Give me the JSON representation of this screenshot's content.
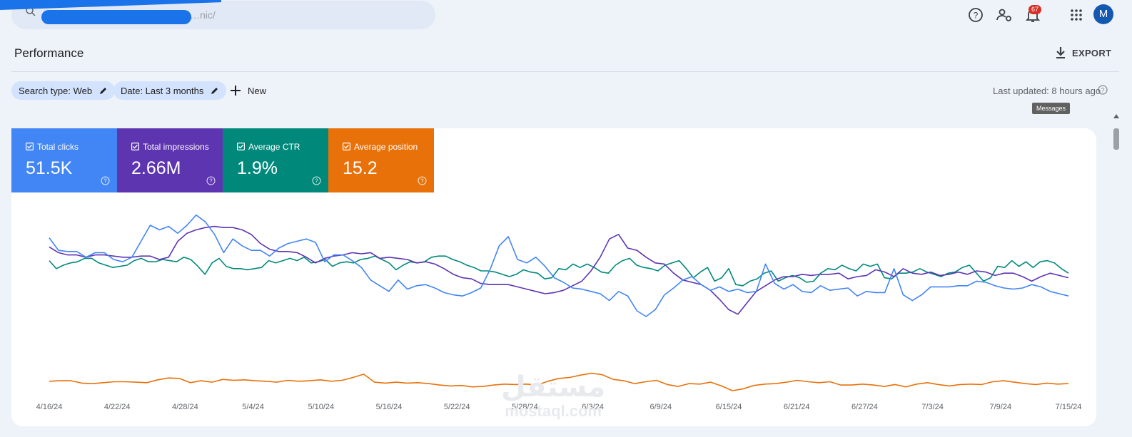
{
  "search": {
    "text": "…nic/"
  },
  "notifications": {
    "count": "67"
  },
  "avatar": {
    "initial": "M"
  },
  "icons": [
    "search-icon",
    "help-icon",
    "admin-icon",
    "bell-icon",
    "apps-grid-icon",
    "download-icon",
    "edit-icon",
    "add-icon",
    "checkbox-icon"
  ],
  "page": {
    "title": "Performance",
    "export_label": "EXPORT"
  },
  "filters": {
    "search_type": "Search type: Web",
    "date": "Date: Last 3 months",
    "new_label": "New"
  },
  "last_updated": "Last updated: 8 hours ago",
  "tooltip": "Messages",
  "metrics": [
    {
      "label": "Total clicks",
      "value": "51.5K",
      "color": "#4285f4",
      "checked": true
    },
    {
      "label": "Total impressions",
      "value": "2.66M",
      "color": "#5e35b1",
      "checked": true
    },
    {
      "label": "Average CTR",
      "value": "1.9%",
      "color": "#00897b",
      "checked": true
    },
    {
      "label": "Average position",
      "value": "15.2",
      "color": "#e8710a",
      "checked": true
    }
  ],
  "watermark": {
    "ar": "مستقل",
    "en": "mostaql.com"
  },
  "chart_data": {
    "type": "line",
    "x_ticks": [
      "4/16/24",
      "4/22/24",
      "4/28/24",
      "5/4/24",
      "5/10/24",
      "5/16/24",
      "5/22/24",
      "5/28/24",
      "6/3/24",
      "6/9/24",
      "6/15/24",
      "6/21/24",
      "6/27/24",
      "7/3/24",
      "7/9/24",
      "7/15/24"
    ],
    "ylim": [
      0,
      100
    ],
    "series": [
      {
        "name": "Total clicks",
        "color": "#4285f4",
        "values": [
          79,
          68,
          67,
          67,
          62,
          66,
          66,
          60,
          58,
          62,
          76,
          90,
          86,
          89,
          83,
          90,
          99,
          93,
          82,
          66,
          78,
          72,
          68,
          68,
          63,
          70,
          74,
          76,
          78,
          75,
          58,
          64,
          64,
          59,
          53,
          42,
          37,
          32,
          42,
          34,
          37,
          38,
          35,
          31,
          29,
          28,
          31,
          35,
          51,
          72,
          80,
          60,
          57,
          62,
          54,
          44,
          40,
          35,
          34,
          32,
          30,
          24,
          32,
          28,
          15,
          10,
          16,
          29,
          35,
          42,
          45,
          38,
          33,
          36,
          32,
          34,
          31,
          32,
          56,
          39,
          34,
          38,
          32,
          31,
          37,
          33,
          34,
          35,
          28,
          32,
          31,
          31,
          52,
          29,
          24,
          29,
          36,
          36,
          36,
          37,
          37,
          41,
          40,
          37,
          35,
          34,
          35,
          38,
          36,
          32,
          30,
          28
        ]
      },
      {
        "name": "Total impressions",
        "color": "#5e35b1",
        "values": [
          71,
          66,
          64,
          64,
          62,
          64,
          64,
          63,
          62,
          62,
          63,
          63,
          60,
          62,
          76,
          83,
          86,
          88,
          89,
          88,
          88,
          86,
          82,
          74,
          69,
          67,
          67,
          66,
          62,
          57,
          61,
          63,
          64,
          66,
          65,
          66,
          61,
          62,
          61,
          60,
          57,
          58,
          56,
          52,
          47,
          44,
          43,
          39,
          38,
          38,
          38,
          36,
          34,
          32,
          30,
          31,
          33,
          37,
          41,
          50,
          62,
          78,
          82,
          70,
          68,
          62,
          57,
          56,
          48,
          42,
          40,
          38,
          33,
          25,
          16,
          12,
          22,
          32,
          37,
          42,
          45,
          45,
          47,
          46,
          47,
          47,
          48,
          43,
          45,
          46,
          51,
          49,
          45,
          52,
          48,
          47,
          49,
          46,
          47,
          49,
          47,
          50,
          49,
          46,
          48,
          48,
          45,
          41,
          45,
          48,
          46,
          44
        ]
      },
      {
        "name": "Average CTR",
        "color": "#00897b",
        "values": [
          59,
          52,
          55,
          57,
          58,
          61,
          61,
          57,
          55,
          53,
          54,
          55,
          59,
          61,
          58,
          58,
          60,
          59,
          58,
          62,
          60,
          54,
          47,
          57,
          61,
          54,
          52,
          52,
          51,
          52,
          53,
          59,
          57,
          59,
          61,
          59,
          62,
          57,
          58,
          60,
          54,
          57,
          58,
          57,
          60,
          61,
          63,
          60,
          57,
          51,
          55,
          58,
          57,
          58,
          62,
          63,
          63,
          60,
          58,
          55,
          53,
          50,
          50,
          49,
          47,
          45,
          47,
          51,
          49,
          48,
          43,
          44,
          52,
          51,
          56,
          53,
          56,
          53,
          49,
          48,
          55,
          59,
          61,
          55,
          53,
          52,
          50,
          55,
          57,
          59,
          52,
          44,
          49,
          53,
          41,
          44,
          52,
          38,
          37,
          41,
          43,
          48,
          50,
          41,
          44,
          46,
          44,
          40,
          41,
          48,
          52,
          51,
          55,
          52,
          50,
          56,
          54,
          56,
          44,
          43,
          48,
          48,
          49,
          52,
          49,
          47,
          45,
          48,
          49,
          53,
          55,
          48,
          41,
          44,
          54,
          53,
          59,
          54,
          58,
          53,
          58,
          59,
          57,
          52,
          48
        ]
      }
    ],
    "orange_series": {
      "name": "Average position",
      "color": "#e8710a",
      "values": [
        20,
        21,
        21,
        16,
        15,
        17,
        19,
        19,
        18,
        17,
        23,
        27,
        26,
        17,
        21,
        18,
        24,
        22,
        23,
        21,
        20,
        18,
        22,
        20,
        21,
        23,
        20,
        22,
        28,
        35,
        18,
        16,
        18,
        16,
        17,
        15,
        12,
        10,
        11,
        8,
        9,
        12,
        14,
        13,
        14,
        12,
        20,
        26,
        28,
        33,
        37,
        34,
        24,
        21,
        15,
        19,
        22,
        13,
        9,
        15,
        14,
        18,
        10,
        0,
        4,
        11,
        14,
        15,
        18,
        22,
        19,
        17,
        19,
        12,
        12,
        14,
        12,
        9,
        13,
        8,
        14,
        17,
        13,
        10,
        13,
        14,
        13,
        19,
        21,
        18,
        15,
        13,
        16,
        14,
        15
      ]
    }
  }
}
